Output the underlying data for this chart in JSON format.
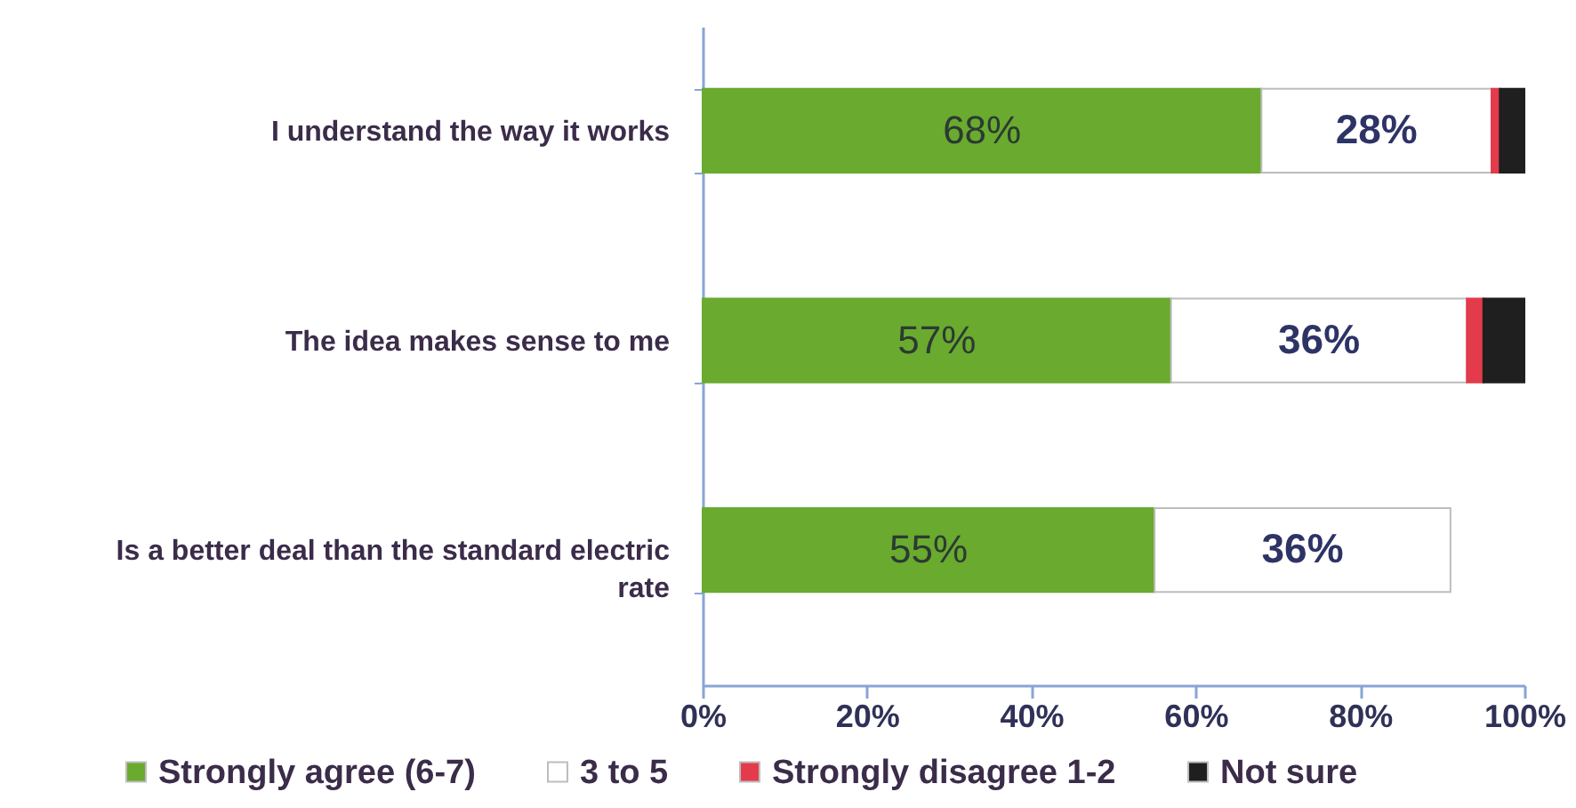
{
  "chart_data": {
    "type": "bar",
    "orientation": "horizontal",
    "stacked": true,
    "categories": [
      "I understand the way it works",
      "The idea makes sense to me",
      "Is a better deal than the standard electric rate"
    ],
    "series": [
      {
        "name": "Strongly agree (6-7)",
        "color": "#6aaa2e",
        "values": [
          68,
          57,
          55
        ],
        "value_labels": [
          "68%",
          "57%",
          "55%"
        ]
      },
      {
        "name": "3 to 5",
        "color": "#ffffff",
        "values": [
          28,
          36,
          36
        ],
        "value_labels": [
          "28%",
          "36%",
          "36%"
        ]
      },
      {
        "name": "Strongly disagree 1-2",
        "color": "#e33b4b",
        "values": [
          1,
          2,
          null
        ]
      },
      {
        "name": "Not sure",
        "color": "#1f1f1f",
        "values": [
          3,
          5,
          null
        ]
      }
    ],
    "xlim": [
      0,
      100
    ],
    "xticks": [
      {
        "value": 0,
        "label": "0%"
      },
      {
        "value": 20,
        "label": "20%"
      },
      {
        "value": 40,
        "label": "40%"
      },
      {
        "value": 60,
        "label": "60%"
      },
      {
        "value": 80,
        "label": "80%"
      },
      {
        "value": 100,
        "label": "100%"
      }
    ],
    "grid": false,
    "legend": "bottom"
  }
}
